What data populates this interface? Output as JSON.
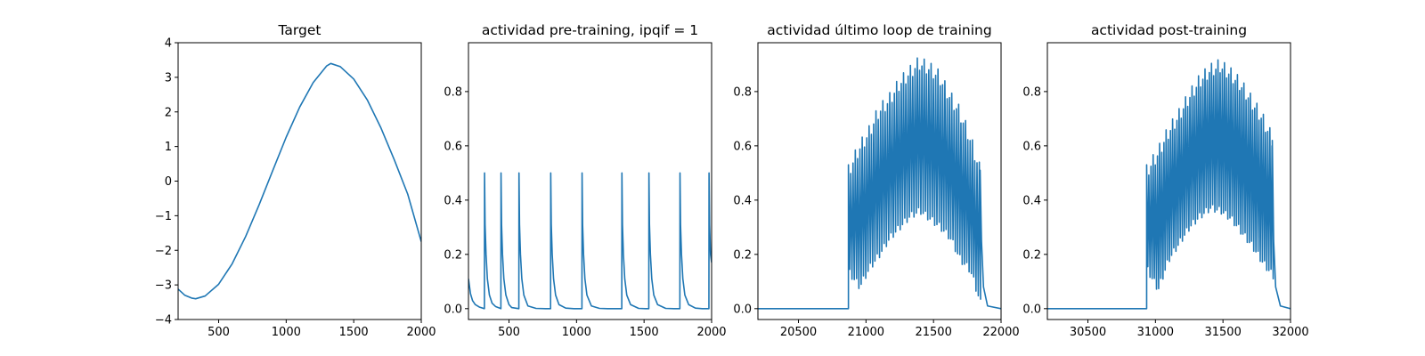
{
  "chart_data": [
    {
      "type": "line",
      "title": "Target",
      "xlabel": "",
      "ylabel": "",
      "xlim": [
        200,
        2000
      ],
      "ylim": [
        -4,
        4
      ],
      "xticks": [
        500,
        1000,
        1500,
        2000
      ],
      "xtick_labels": [
        "500",
        "1000",
        "1500",
        "2000"
      ],
      "yticks": [
        -4,
        -3,
        -2,
        -1,
        0,
        1,
        2,
        3,
        4
      ],
      "ytick_labels": [
        "−4",
        "−3",
        "−2",
        "−1",
        "0",
        "1",
        "2",
        "3",
        "4"
      ],
      "grid": false,
      "series": [
        {
          "color": "#1f77b4",
          "x": [
            200,
            250,
            300,
            330,
            400,
            500,
            600,
            700,
            800,
            900,
            1000,
            1100,
            1200,
            1300,
            1330,
            1400,
            1500,
            1600,
            1700,
            1800,
            1900,
            2000
          ],
          "y": [
            -3.12,
            -3.3,
            -3.38,
            -3.4,
            -3.32,
            -2.98,
            -2.39,
            -1.6,
            -0.68,
            0.3,
            1.27,
            2.14,
            2.85,
            3.33,
            3.4,
            3.31,
            2.95,
            2.35,
            1.55,
            0.62,
            -0.38,
            -1.75
          ]
        }
      ]
    },
    {
      "type": "line",
      "title": "actividad pre-training, ipqif = 1",
      "xlabel": "",
      "ylabel": "",
      "xlim": [
        200,
        2000
      ],
      "ylim": [
        -0.04,
        0.98
      ],
      "xticks": [
        500,
        1000,
        1500,
        2000
      ],
      "xtick_labels": [
        "500",
        "1000",
        "1500",
        "2000"
      ],
      "yticks": [
        0.0,
        0.2,
        0.4,
        0.6,
        0.8
      ],
      "ytick_labels": [
        "0.0",
        "0.2",
        "0.4",
        "0.6",
        "0.8"
      ],
      "grid": false,
      "series": [
        {
          "color": "#1f77b4",
          "x": [
            200,
            215,
            230,
            250,
            280,
            318,
            319,
            323,
            330,
            340,
            355,
            375,
            400,
            440,
            441,
            445,
            452,
            462,
            477,
            500,
            520,
            573,
            574,
            578,
            585,
            595,
            610,
            640,
            700,
            770,
            808,
            809,
            813,
            820,
            830,
            845,
            870,
            920,
            980,
            1040,
            1041,
            1045,
            1052,
            1062,
            1077,
            1110,
            1170,
            1230,
            1290,
            1335,
            1336,
            1340,
            1347,
            1357,
            1372,
            1400,
            1460,
            1510,
            1535,
            1536,
            1540,
            1547,
            1557,
            1572,
            1600,
            1660,
            1720,
            1765,
            1766,
            1770,
            1777,
            1787,
            1802,
            1830,
            1880,
            1930,
            1960,
            1980,
            1981,
            1985,
            1992,
            2000
          ],
          "y": [
            0.11,
            0.055,
            0.03,
            0.015,
            0.006,
            0.0,
            0.5,
            0.31,
            0.2,
            0.11,
            0.05,
            0.02,
            0.008,
            0.0,
            0.5,
            0.31,
            0.2,
            0.11,
            0.05,
            0.015,
            0.004,
            0.0,
            0.5,
            0.31,
            0.2,
            0.11,
            0.05,
            0.01,
            0.001,
            0.0,
            0.0,
            0.5,
            0.31,
            0.2,
            0.11,
            0.05,
            0.015,
            0.002,
            0.0,
            0.0,
            0.5,
            0.31,
            0.2,
            0.11,
            0.05,
            0.01,
            0.001,
            0.0,
            0.0,
            0.0,
            0.5,
            0.31,
            0.2,
            0.11,
            0.05,
            0.015,
            0.001,
            0.0,
            0.0,
            0.5,
            0.31,
            0.2,
            0.11,
            0.05,
            0.015,
            0.001,
            0.0,
            0.0,
            0.5,
            0.31,
            0.2,
            0.11,
            0.05,
            0.015,
            0.002,
            0.0,
            0.0,
            0.0,
            0.5,
            0.31,
            0.2,
            0.17
          ]
        }
      ]
    },
    {
      "type": "line",
      "title": "actividad último loop de training",
      "xlabel": "",
      "ylabel": "",
      "xlim": [
        20200,
        22000
      ],
      "ylim": [
        -0.04,
        0.98
      ],
      "xticks": [
        20500,
        21000,
        21500,
        22000
      ],
      "xtick_labels": [
        "20500",
        "21000",
        "21500",
        "22000"
      ],
      "yticks": [
        0.0,
        0.2,
        0.4,
        0.6,
        0.8
      ],
      "ytick_labels": [
        "0.0",
        "0.2",
        "0.4",
        "0.6",
        "0.8"
      ],
      "grid": false,
      "burst": {
        "baseline": 0.0,
        "start": 20870,
        "end": 21860,
        "period": 17,
        "peaks": [
          0.5,
          0.58,
          0.64,
          0.72,
          0.76,
          0.82,
          0.86,
          0.9,
          0.88,
          0.85,
          0.78,
          0.72,
          0.63,
          0.51
        ],
        "troughs": [
          0.13,
          0.08,
          0.15,
          0.2,
          0.26,
          0.3,
          0.34,
          0.36,
          0.33,
          0.3,
          0.26,
          0.18,
          0.14,
          0.02
        ],
        "final_spike_x": 21845,
        "final_spike_y": 0.51,
        "final_tail_x": 21900
      },
      "series": [
        {
          "color": "#1f77b4"
        }
      ]
    },
    {
      "type": "line",
      "title": "actividad post-training",
      "xlabel": "",
      "ylabel": "",
      "xlim": [
        30200,
        32000
      ],
      "ylim": [
        -0.04,
        0.98
      ],
      "xticks": [
        30500,
        31000,
        31500,
        32000
      ],
      "xtick_labels": [
        "30500",
        "31000",
        "31500",
        "32000"
      ],
      "yticks": [
        0.0,
        0.2,
        0.4,
        0.6,
        0.8
      ],
      "ytick_labels": [
        "0.0",
        "0.2",
        "0.4",
        "0.6",
        "0.8"
      ],
      "grid": false,
      "burst": {
        "baseline": 0.0,
        "start": 30935,
        "end": 31880,
        "period": 16,
        "peaks": [
          0.5,
          0.56,
          0.64,
          0.7,
          0.77,
          0.83,
          0.87,
          0.89,
          0.86,
          0.82,
          0.76,
          0.7,
          0.62
        ],
        "troughs": [
          0.14,
          0.07,
          0.18,
          0.24,
          0.3,
          0.34,
          0.37,
          0.36,
          0.33,
          0.28,
          0.23,
          0.17,
          0.12
        ],
        "final_spike_x": 31865,
        "final_spike_y": 0.62,
        "final_tail_x": 31925
      },
      "series": [
        {
          "color": "#1f77b4"
        }
      ]
    }
  ]
}
